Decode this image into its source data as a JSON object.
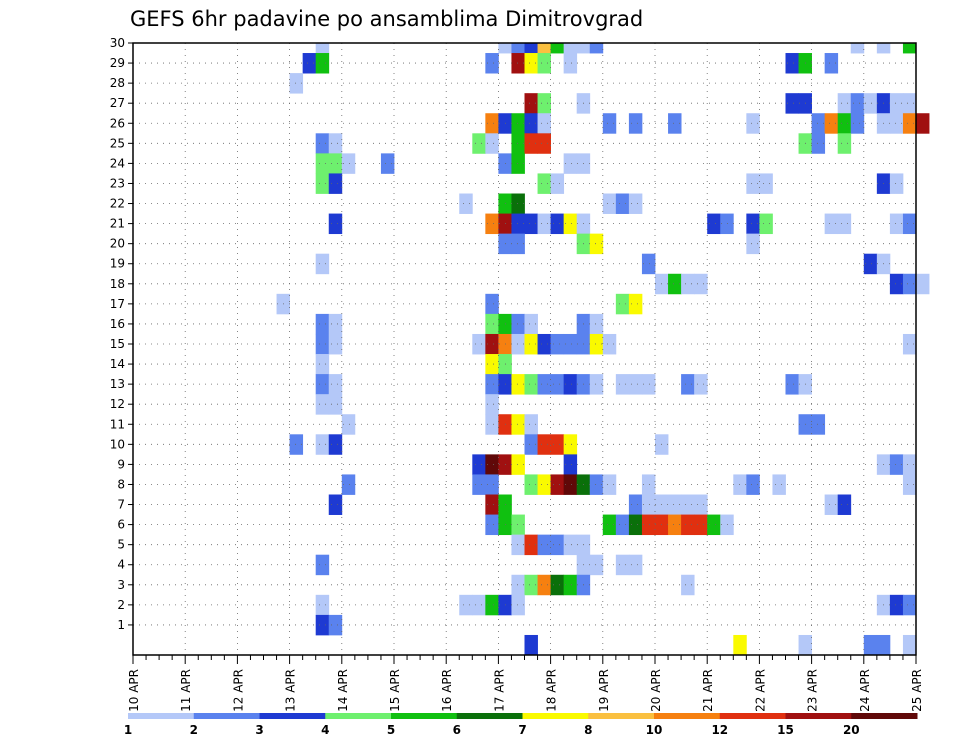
{
  "chart_data": {
    "type": "heatmap",
    "title": "GEFS 6hr padavine po ansamblima Dimitrovgrad",
    "x_start": "2025-04-10",
    "x_end": "2025-04-25",
    "x_step_hours": 6,
    "x_tick_labels": [
      "10 APR",
      "11 APR",
      "12 APR",
      "13 APR",
      "14 APR",
      "15 APR",
      "16 APR",
      "17 APR",
      "18 APR",
      "19 APR",
      "20 APR",
      "21 APR",
      "22 APR",
      "23 APR",
      "24 APR",
      "25 APR"
    ],
    "y_tick_labels": [
      "1",
      "2",
      "3",
      "4",
      "5",
      "6",
      "7",
      "8",
      "9",
      "10",
      "11",
      "12",
      "13",
      "14",
      "15",
      "16",
      "17",
      "18",
      "19",
      "20",
      "21",
      "22",
      "23",
      "24",
      "25",
      "26",
      "27",
      "28",
      "29",
      "30"
    ],
    "grid": true,
    "colorbar": {
      "labels": [
        "1",
        "2",
        "3",
        "4",
        "5",
        "6",
        "7",
        "8",
        "10",
        "12",
        "15",
        "20"
      ],
      "colors": [
        "#b4c8f8",
        "#5a82ee",
        "#1e3ad2",
        "#6ef06e",
        "#10c010",
        "#0a700a",
        "#fafa00",
        "#fac040",
        "#f68010",
        "#e03010",
        "#a01010",
        "#600808"
      ]
    },
    "cells": [
      [
        30,
        14,
        0
      ],
      [
        30,
        28,
        0
      ],
      [
        30,
        29,
        1
      ],
      [
        30,
        30,
        2
      ],
      [
        30,
        31,
        7
      ],
      [
        30,
        32,
        4
      ],
      [
        30,
        33,
        0
      ],
      [
        30,
        34,
        0
      ],
      [
        30,
        35,
        1
      ],
      [
        30,
        55,
        0
      ],
      [
        30,
        57,
        0
      ],
      [
        30,
        59,
        4
      ],
      [
        29,
        13,
        2
      ],
      [
        29,
        14,
        4
      ],
      [
        29,
        27,
        1
      ],
      [
        29,
        29,
        10
      ],
      [
        29,
        30,
        6
      ],
      [
        29,
        31,
        3
      ],
      [
        29,
        33,
        0
      ],
      [
        29,
        50,
        2
      ],
      [
        29,
        51,
        4
      ],
      [
        29,
        53,
        1
      ],
      [
        28,
        12,
        0
      ],
      [
        27,
        30,
        10
      ],
      [
        27,
        31,
        3
      ],
      [
        27,
        34,
        0
      ],
      [
        27,
        50,
        2
      ],
      [
        27,
        51,
        2
      ],
      [
        27,
        54,
        0
      ],
      [
        27,
        55,
        1
      ],
      [
        27,
        56,
        0
      ],
      [
        27,
        57,
        2
      ],
      [
        27,
        58,
        0
      ],
      [
        27,
        59,
        0
      ],
      [
        26,
        27,
        8
      ],
      [
        26,
        28,
        2
      ],
      [
        26,
        29,
        4
      ],
      [
        26,
        30,
        2
      ],
      [
        26,
        31,
        0
      ],
      [
        26,
        36,
        1
      ],
      [
        26,
        38,
        1
      ],
      [
        26,
        41,
        1
      ],
      [
        26,
        47,
        0
      ],
      [
        26,
        52,
        1
      ],
      [
        26,
        53,
        8
      ],
      [
        26,
        54,
        4
      ],
      [
        26,
        55,
        1
      ],
      [
        26,
        57,
        0
      ],
      [
        26,
        58,
        0
      ],
      [
        26,
        59,
        8
      ],
      [
        26,
        60,
        10
      ],
      [
        25,
        14,
        1
      ],
      [
        25,
        15,
        0
      ],
      [
        25,
        26,
        3
      ],
      [
        25,
        27,
        0
      ],
      [
        25,
        29,
        4
      ],
      [
        25,
        30,
        9
      ],
      [
        25,
        31,
        9
      ],
      [
        25,
        51,
        3
      ],
      [
        25,
        52,
        1
      ],
      [
        25,
        54,
        3
      ],
      [
        24,
        14,
        3
      ],
      [
        24,
        15,
        3
      ],
      [
        24,
        16,
        0
      ],
      [
        24,
        19,
        1
      ],
      [
        24,
        28,
        1
      ],
      [
        24,
        29,
        4
      ],
      [
        24,
        33,
        0
      ],
      [
        24,
        34,
        0
      ],
      [
        23,
        14,
        3
      ],
      [
        23,
        15,
        2
      ],
      [
        23,
        31,
        3
      ],
      [
        23,
        32,
        0
      ],
      [
        23,
        47,
        0
      ],
      [
        23,
        48,
        0
      ],
      [
        23,
        57,
        2
      ],
      [
        23,
        58,
        0
      ],
      [
        22,
        25,
        0
      ],
      [
        22,
        28,
        4
      ],
      [
        22,
        29,
        5
      ],
      [
        22,
        36,
        0
      ],
      [
        22,
        37,
        1
      ],
      [
        22,
        38,
        0
      ],
      [
        21,
        15,
        2
      ],
      [
        21,
        27,
        8
      ],
      [
        21,
        28,
        10
      ],
      [
        21,
        29,
        2
      ],
      [
        21,
        30,
        2
      ],
      [
        21,
        31,
        0
      ],
      [
        21,
        32,
        2
      ],
      [
        21,
        33,
        6
      ],
      [
        21,
        34,
        0
      ],
      [
        21,
        44,
        2
      ],
      [
        21,
        45,
        1
      ],
      [
        21,
        47,
        2
      ],
      [
        21,
        48,
        3
      ],
      [
        21,
        53,
        0
      ],
      [
        21,
        54,
        0
      ],
      [
        21,
        58,
        0
      ],
      [
        21,
        59,
        1
      ],
      [
        20,
        28,
        1
      ],
      [
        20,
        29,
        1
      ],
      [
        20,
        34,
        3
      ],
      [
        20,
        35,
        6
      ],
      [
        20,
        47,
        0
      ],
      [
        19,
        14,
        0
      ],
      [
        19,
        39,
        1
      ],
      [
        19,
        56,
        2
      ],
      [
        19,
        57,
        0
      ],
      [
        18,
        40,
        0
      ],
      [
        18,
        41,
        4
      ],
      [
        18,
        42,
        0
      ],
      [
        18,
        43,
        0
      ],
      [
        18,
        58,
        2
      ],
      [
        18,
        59,
        1
      ],
      [
        18,
        60,
        0
      ],
      [
        17,
        11,
        0
      ],
      [
        17,
        27,
        1
      ],
      [
        17,
        37,
        3
      ],
      [
        17,
        38,
        6
      ],
      [
        16,
        14,
        1
      ],
      [
        16,
        15,
        0
      ],
      [
        16,
        27,
        3
      ],
      [
        16,
        28,
        4
      ],
      [
        16,
        29,
        1
      ],
      [
        16,
        30,
        0
      ],
      [
        16,
        34,
        1
      ],
      [
        16,
        35,
        0
      ],
      [
        15,
        14,
        1
      ],
      [
        15,
        15,
        0
      ],
      [
        15,
        26,
        0
      ],
      [
        15,
        27,
        10
      ],
      [
        15,
        28,
        8
      ],
      [
        15,
        29,
        0
      ],
      [
        15,
        30,
        6
      ],
      [
        15,
        31,
        2
      ],
      [
        15,
        32,
        1
      ],
      [
        15,
        33,
        1
      ],
      [
        15,
        34,
        1
      ],
      [
        15,
        35,
        6
      ],
      [
        15,
        36,
        0
      ],
      [
        15,
        59,
        0
      ],
      [
        14,
        14,
        0
      ],
      [
        14,
        27,
        6
      ],
      [
        14,
        28,
        3
      ],
      [
        13,
        14,
        1
      ],
      [
        13,
        15,
        0
      ],
      [
        13,
        27,
        1
      ],
      [
        13,
        28,
        2
      ],
      [
        13,
        29,
        6
      ],
      [
        13,
        30,
        3
      ],
      [
        13,
        31,
        1
      ],
      [
        13,
        32,
        1
      ],
      [
        13,
        33,
        2
      ],
      [
        13,
        34,
        1
      ],
      [
        13,
        35,
        0
      ],
      [
        13,
        37,
        0
      ],
      [
        13,
        38,
        0
      ],
      [
        13,
        39,
        0
      ],
      [
        13,
        42,
        1
      ],
      [
        13,
        43,
        0
      ],
      [
        13,
        50,
        1
      ],
      [
        13,
        51,
        0
      ],
      [
        12,
        14,
        0
      ],
      [
        12,
        15,
        0
      ],
      [
        12,
        27,
        0
      ],
      [
        11,
        16,
        0
      ],
      [
        11,
        27,
        0
      ],
      [
        11,
        28,
        9
      ],
      [
        11,
        29,
        6
      ],
      [
        11,
        30,
        0
      ],
      [
        11,
        51,
        1
      ],
      [
        11,
        52,
        1
      ],
      [
        10,
        12,
        1
      ],
      [
        10,
        14,
        0
      ],
      [
        10,
        15,
        2
      ],
      [
        10,
        30,
        1
      ],
      [
        10,
        31,
        9
      ],
      [
        10,
        32,
        9
      ],
      [
        10,
        33,
        6
      ],
      [
        10,
        40,
        0
      ],
      [
        9,
        26,
        2
      ],
      [
        9,
        27,
        11
      ],
      [
        9,
        28,
        10
      ],
      [
        9,
        29,
        6
      ],
      [
        9,
        33,
        2
      ],
      [
        9,
        57,
        0
      ],
      [
        9,
        58,
        1
      ],
      [
        9,
        59,
        0
      ],
      [
        8,
        16,
        1
      ],
      [
        8,
        26,
        1
      ],
      [
        8,
        27,
        1
      ],
      [
        8,
        30,
        3
      ],
      [
        8,
        31,
        6
      ],
      [
        8,
        32,
        10
      ],
      [
        8,
        33,
        11
      ],
      [
        8,
        34,
        5
      ],
      [
        8,
        35,
        1
      ],
      [
        8,
        36,
        0
      ],
      [
        8,
        39,
        0
      ],
      [
        8,
        46,
        0
      ],
      [
        8,
        47,
        1
      ],
      [
        8,
        49,
        0
      ],
      [
        8,
        59,
        0
      ],
      [
        7,
        15,
        2
      ],
      [
        7,
        27,
        10
      ],
      [
        7,
        28,
        4
      ],
      [
        7,
        38,
        1
      ],
      [
        7,
        39,
        0
      ],
      [
        7,
        40,
        0
      ],
      [
        7,
        41,
        0
      ],
      [
        7,
        42,
        0
      ],
      [
        7,
        43,
        0
      ],
      [
        7,
        53,
        0
      ],
      [
        7,
        54,
        2
      ],
      [
        6,
        27,
        1
      ],
      [
        6,
        28,
        4
      ],
      [
        6,
        29,
        3
      ],
      [
        6,
        36,
        4
      ],
      [
        6,
        37,
        1
      ],
      [
        6,
        38,
        5
      ],
      [
        6,
        39,
        9
      ],
      [
        6,
        40,
        9
      ],
      [
        6,
        41,
        8
      ],
      [
        6,
        42,
        9
      ],
      [
        6,
        43,
        9
      ],
      [
        6,
        44,
        4
      ],
      [
        6,
        45,
        0
      ],
      [
        5,
        29,
        0
      ],
      [
        5,
        30,
        9
      ],
      [
        5,
        31,
        1
      ],
      [
        5,
        32,
        1
      ],
      [
        5,
        33,
        0
      ],
      [
        5,
        34,
        0
      ],
      [
        4,
        14,
        1
      ],
      [
        4,
        34,
        0
      ],
      [
        4,
        35,
        0
      ],
      [
        4,
        37,
        0
      ],
      [
        4,
        38,
        0
      ],
      [
        3,
        29,
        0
      ],
      [
        3,
        30,
        3
      ],
      [
        3,
        31,
        8
      ],
      [
        3,
        32,
        5
      ],
      [
        3,
        33,
        4
      ],
      [
        3,
        34,
        1
      ],
      [
        3,
        42,
        0
      ],
      [
        2,
        14,
        0
      ],
      [
        2,
        25,
        0
      ],
      [
        2,
        26,
        0
      ],
      [
        2,
        27,
        4
      ],
      [
        2,
        28,
        2
      ],
      [
        2,
        29,
        0
      ],
      [
        2,
        57,
        0
      ],
      [
        2,
        58,
        2
      ],
      [
        2,
        59,
        1
      ],
      [
        1,
        14,
        2
      ],
      [
        1,
        15,
        1
      ],
      [
        0,
        30,
        2
      ],
      [
        0,
        46,
        6
      ],
      [
        0,
        51,
        0
      ],
      [
        0,
        56,
        1
      ],
      [
        0,
        57,
        1
      ],
      [
        0,
        59,
        0
      ]
    ]
  }
}
